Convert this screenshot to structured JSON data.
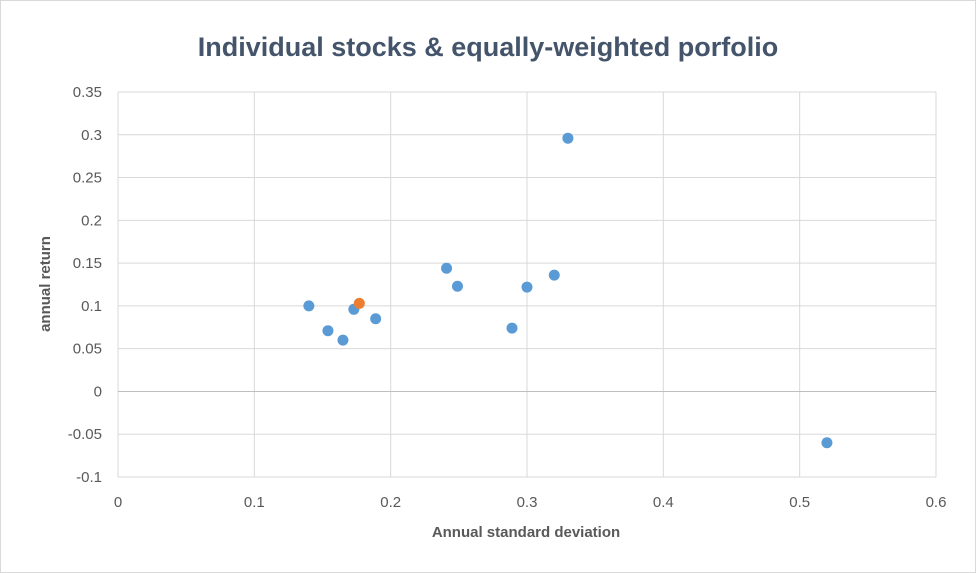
{
  "chart_data": {
    "type": "scatter",
    "title": "Individual stocks & equally-weighted porfolio",
    "xlabel": "Annual standard deviation",
    "ylabel": "annual return",
    "xlim": [
      0,
      0.6
    ],
    "ylim": [
      -0.1,
      0.35
    ],
    "x_ticks": [
      "0",
      "0.1",
      "0.2",
      "0.3",
      "0.4",
      "0.5",
      "0.6"
    ],
    "y_ticks": [
      "-0.1",
      "-0.05",
      "0",
      "0.05",
      "0.1",
      "0.15",
      "0.2",
      "0.25",
      "0.3",
      "0.35"
    ],
    "grid": true,
    "legend": "none",
    "series": [
      {
        "color": "#5b9bd5",
        "points": [
          {
            "x": 0.14,
            "y": 0.1
          },
          {
            "x": 0.154,
            "y": 0.071
          },
          {
            "x": 0.165,
            "y": 0.06
          },
          {
            "x": 0.173,
            "y": 0.096
          },
          {
            "x": 0.189,
            "y": 0.085
          },
          {
            "x": 0.241,
            "y": 0.144
          },
          {
            "x": 0.249,
            "y": 0.123
          },
          {
            "x": 0.289,
            "y": 0.074
          },
          {
            "x": 0.3,
            "y": 0.122
          },
          {
            "x": 0.32,
            "y": 0.136
          },
          {
            "x": 0.33,
            "y": 0.296
          },
          {
            "x": 0.52,
            "y": -0.06
          }
        ]
      },
      {
        "color": "#ed7d31",
        "points": [
          {
            "x": 0.177,
            "y": 0.103
          }
        ]
      }
    ]
  }
}
